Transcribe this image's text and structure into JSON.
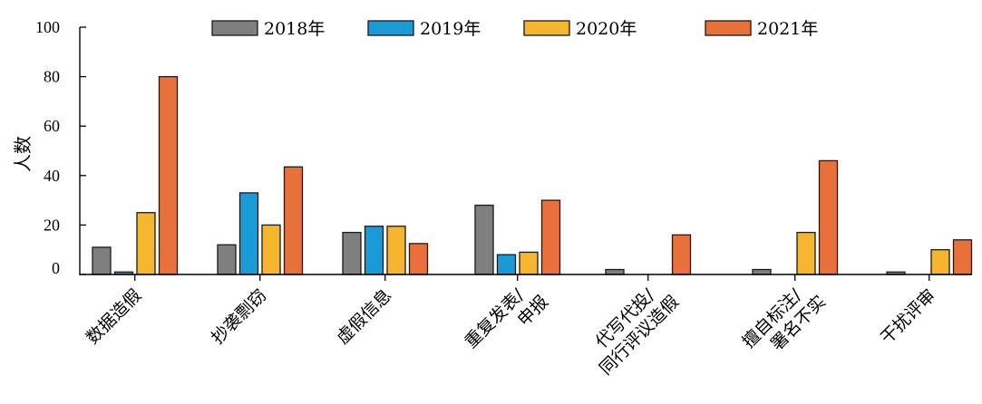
{
  "chart_data": {
    "type": "bar",
    "ylabel": "人数",
    "ylim": [
      0,
      100
    ],
    "yticks": [
      "0",
      "20",
      "40",
      "60",
      "80",
      "100"
    ],
    "categories": [
      [
        "数据造假"
      ],
      [
        "抄袭剽窃"
      ],
      [
        "虚假信息"
      ],
      [
        "重复发表/",
        "申报"
      ],
      [
        "代写代投/",
        "同行评议造假"
      ],
      [
        "擅自标注/",
        "署名不实"
      ],
      [
        "干扰评审"
      ]
    ],
    "series": [
      {
        "name": "2018年",
        "color": "#7f7f80",
        "values": [
          11,
          12,
          17,
          28,
          2,
          2,
          1
        ]
      },
      {
        "name": "2019年",
        "color": "#1b9ad6",
        "values": [
          1,
          33,
          19.5,
          8,
          0,
          0,
          0
        ]
      },
      {
        "name": "2020年",
        "color": "#f5b52e",
        "values": [
          25,
          20,
          19.5,
          9,
          0,
          17,
          10
        ]
      },
      {
        "name": "2021年",
        "color": "#e8703a",
        "values": [
          80,
          43.5,
          12.5,
          30,
          16,
          46,
          14
        ]
      }
    ],
    "legend_position": "top",
    "grid": false
  }
}
